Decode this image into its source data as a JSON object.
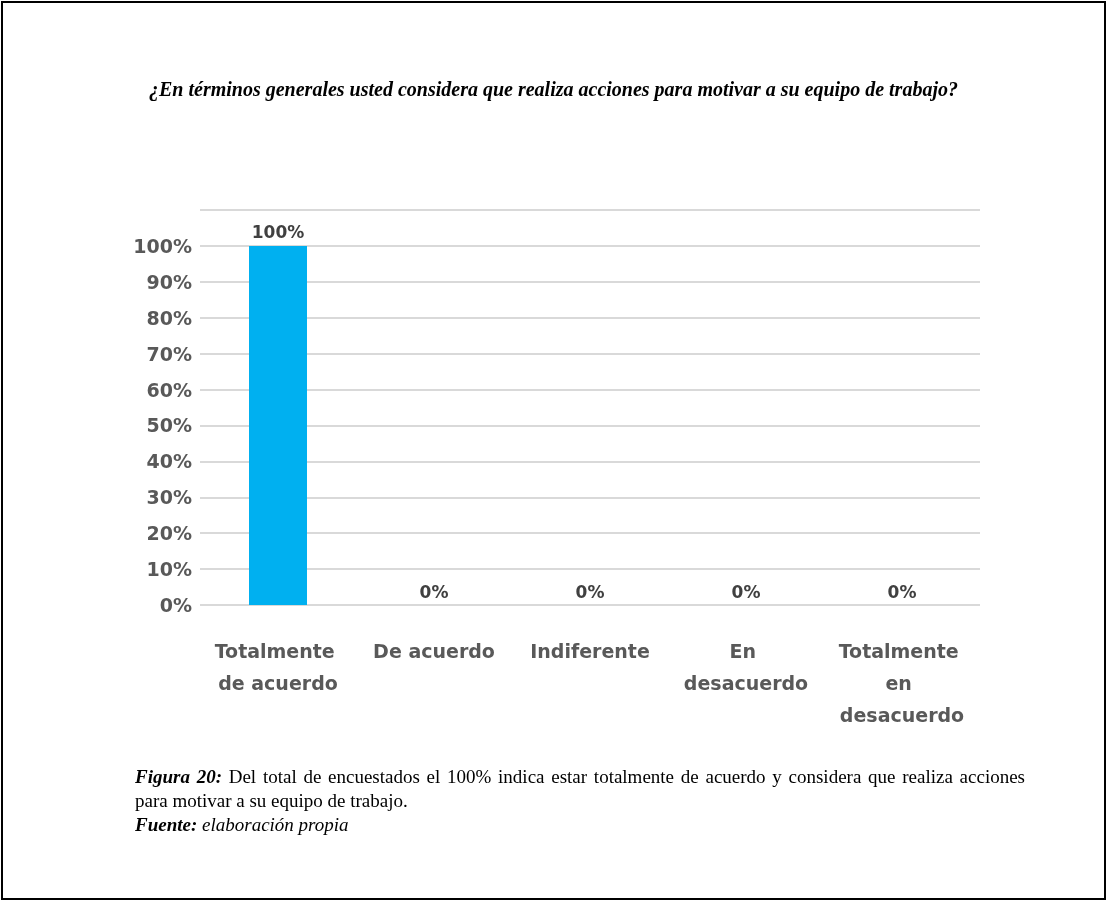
{
  "chart_data": {
    "type": "bar",
    "title": "¿En términos generales usted considera que realiza acciones para motivar a su equipo de trabajo?",
    "categories": [
      "Totalmente de acuerdo",
      "De acuerdo",
      "Indiferente",
      "En desacuerdo",
      "Totalmente en desacuerdo"
    ],
    "values": [
      100,
      0,
      0,
      0,
      0
    ],
    "colors": [
      "#00b0f0",
      "#c9c400",
      "#595959",
      "#c55a11",
      "#00843d"
    ],
    "value_labels": [
      "100%",
      "0%",
      "0%",
      "0%",
      "0%"
    ],
    "ylim": [
      0,
      110
    ],
    "yticks": [
      {
        "value": 0,
        "label": "0%"
      },
      {
        "value": 10,
        "label": "10%"
      },
      {
        "value": 20,
        "label": "20%"
      },
      {
        "value": 30,
        "label": "30%"
      },
      {
        "value": 40,
        "label": "40%"
      },
      {
        "value": 50,
        "label": "50%"
      },
      {
        "value": 60,
        "label": "60%"
      },
      {
        "value": 70,
        "label": "70%"
      },
      {
        "value": 80,
        "label": "80%"
      },
      {
        "value": 90,
        "label": "90%"
      },
      {
        "value": 100,
        "label": "100%"
      },
      {
        "value": 110,
        "label": null
      }
    ],
    "grid": "y",
    "annotations": [
      "Figura 20: Del total de encuestados el 100% indica estar totalmente de acuerdo y considera que realiza acciones para motivar a su equipo de trabajo.",
      "Fuente: elaboración propia"
    ]
  }
}
